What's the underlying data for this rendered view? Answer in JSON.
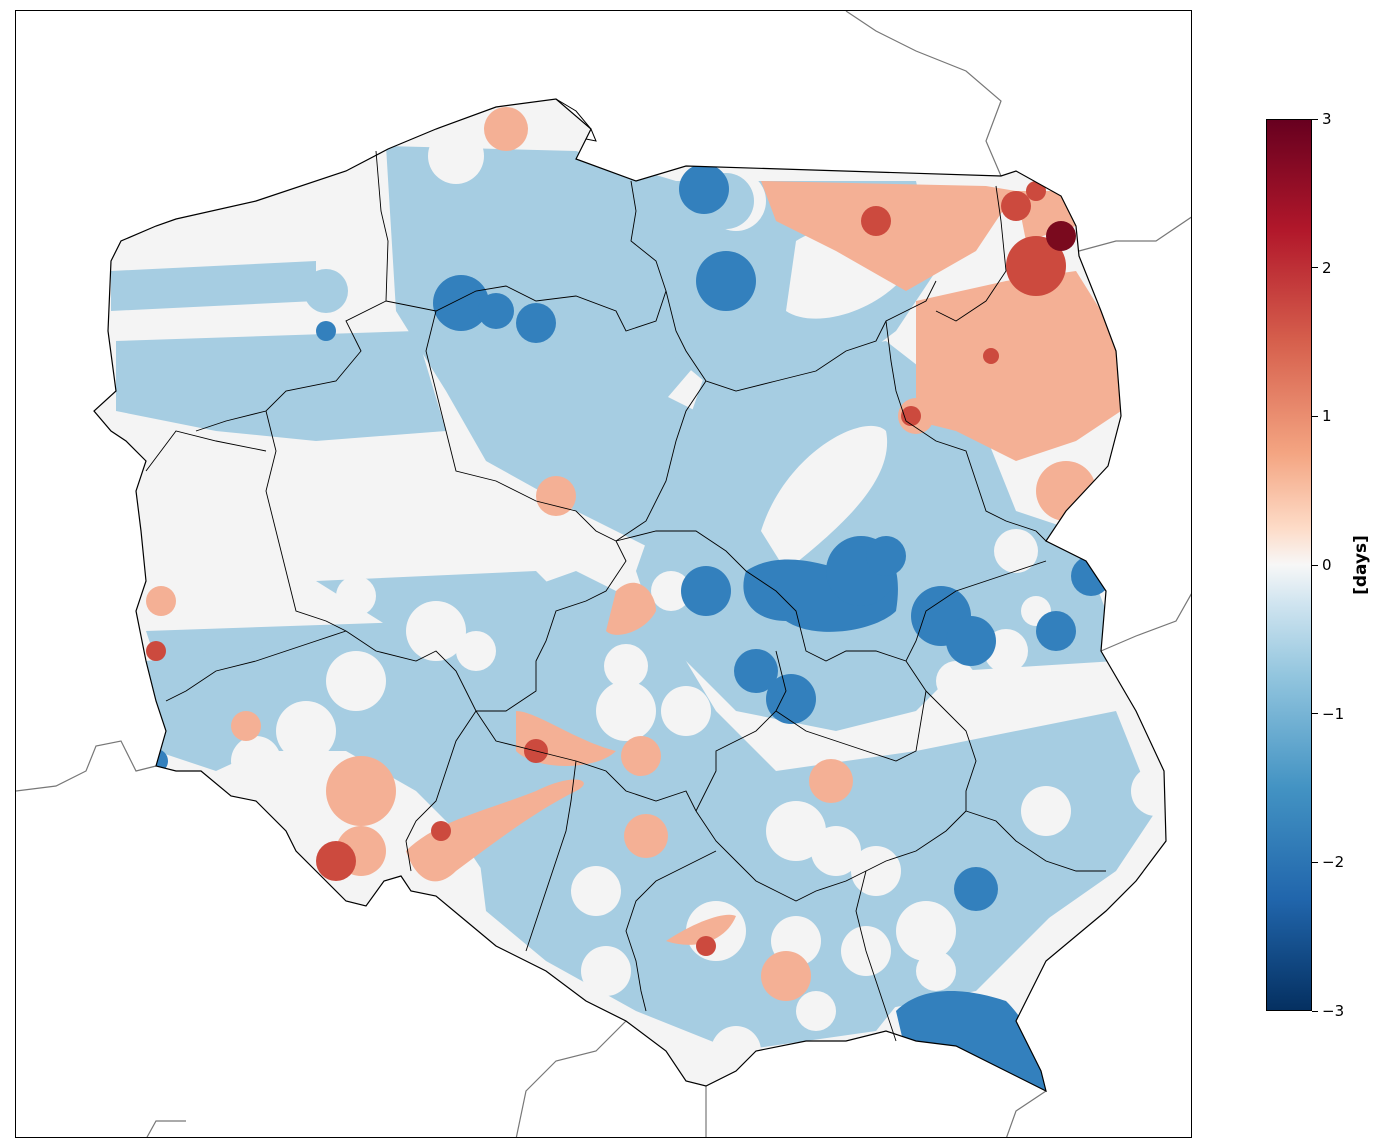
{
  "map": {
    "region_shown": "Poland",
    "value_field": "anomaly",
    "colormap": "RdBu_r",
    "value_range": [
      -3,
      3
    ]
  },
  "colorbar": {
    "label": "[days]",
    "min": -3,
    "max": 3,
    "ticks": [
      {
        "value": 3,
        "label": "3"
      },
      {
        "value": 2,
        "label": "2"
      },
      {
        "value": 1,
        "label": "1"
      },
      {
        "value": 0,
        "label": "0"
      },
      {
        "value": -1,
        "label": "−1"
      },
      {
        "value": -2,
        "label": "−2"
      },
      {
        "value": -3,
        "label": "−3"
      }
    ],
    "stops": [
      {
        "value": -3,
        "color": "#053061"
      },
      {
        "value": -2.25,
        "color": "#2166ac"
      },
      {
        "value": -1.5,
        "color": "#4393c3"
      },
      {
        "value": -0.75,
        "color": "#92c5de"
      },
      {
        "value": -0.25,
        "color": "#d1e5f0"
      },
      {
        "value": 0,
        "color": "#f7f7f7"
      },
      {
        "value": 0.25,
        "color": "#fddbc7"
      },
      {
        "value": 0.75,
        "color": "#f4a582"
      },
      {
        "value": 1.5,
        "color": "#d6604d"
      },
      {
        "value": 2.25,
        "color": "#b2182b"
      },
      {
        "value": 3,
        "color": "#67001f"
      }
    ]
  },
  "colors": {
    "neutral": "#f4f4f4",
    "light_blue": "#a6cde2",
    "mid_blue": "#4f95c6",
    "strong_blue": "#3380bd",
    "light_red": "#f4b095",
    "mid_red": "#e58b73",
    "strong_red": "#cc4a3e",
    "dark_red": "#7a0a1e",
    "border": "#000000",
    "neighbor_border": "#777777"
  }
}
